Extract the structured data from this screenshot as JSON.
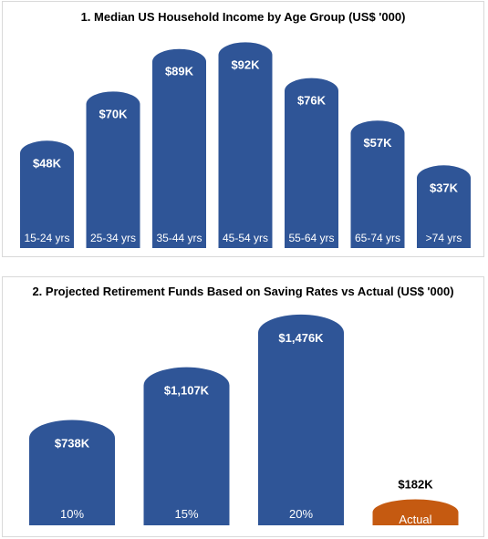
{
  "colors": {
    "bar": "#2f5597",
    "actual": "#c55a11",
    "label_light": "#ffffff",
    "label_dark": "#000000"
  },
  "chart_data": [
    {
      "type": "bar",
      "title": "1. Median US Household Income by Age Group (US$ '000)",
      "categories": [
        "15-24 yrs",
        "25-34 yrs",
        "35-44 yrs",
        "45-54 yrs",
        "55-64 yrs",
        "65-74 yrs",
        ">74 yrs"
      ],
      "values": [
        48,
        70,
        89,
        92,
        76,
        57,
        37
      ],
      "data_labels": [
        "$48K",
        "$70K",
        "$89K",
        "$92K",
        "$76K",
        "$57K",
        "$37K"
      ],
      "xlabel": "",
      "ylabel": "",
      "ylim": [
        0,
        95
      ],
      "grid": false,
      "legend": "none"
    },
    {
      "type": "bar",
      "title": "2. Projected Retirement Funds Based on Saving Rates vs Actual (US$ '000)",
      "categories": [
        "10%",
        "15%",
        "20%",
        "Actual"
      ],
      "values": [
        738,
        1107,
        1476,
        182
      ],
      "data_labels": [
        "$738K",
        "$1,107K",
        "$1,476K",
        "$182K"
      ],
      "xlabel": "",
      "ylabel": "",
      "ylim": [
        0,
        1520
      ],
      "grid": false,
      "legend": "none"
    }
  ]
}
